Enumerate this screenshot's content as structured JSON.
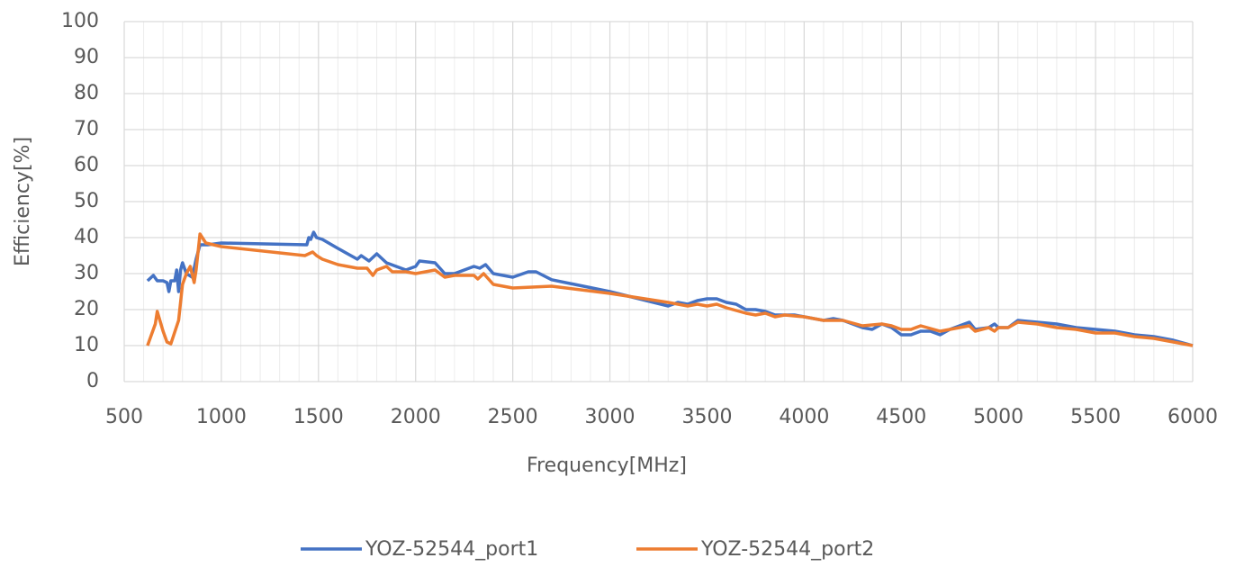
{
  "chart_data": {
    "type": "line",
    "x_label": "Frequency[MHz]",
    "y_label": "Efficiency[%]",
    "xlim": [
      500,
      6000
    ],
    "xticks": [
      500,
      1000,
      1500,
      2000,
      2500,
      3000,
      3500,
      4000,
      4500,
      5000,
      5500,
      6000
    ],
    "ylim": [
      0,
      100
    ],
    "yticks": [
      0,
      10,
      20,
      30,
      40,
      50,
      60,
      70,
      80,
      90,
      100
    ],
    "grid": true,
    "minor_x_grid_step": 100,
    "legend": "bottom",
    "series": [
      {
        "name": "YOZ-52544_port1",
        "color": "#4472c4",
        "x": [
          620,
          650,
          670,
          700,
          720,
          730,
          740,
          760,
          770,
          780,
          790,
          800,
          820,
          850,
          870,
          890,
          910,
          930,
          1000,
          1440,
          1450,
          1460,
          1475,
          1490,
          1520,
          1600,
          1700,
          1720,
          1760,
          1800,
          1850,
          1900,
          1950,
          2000,
          2020,
          2100,
          2150,
          2200,
          2300,
          2330,
          2360,
          2400,
          2500,
          2580,
          2620,
          2700,
          3000,
          3300,
          3350,
          3400,
          3450,
          3500,
          3550,
          3600,
          3650,
          3700,
          3750,
          3800,
          3850,
          3900,
          3950,
          4000,
          4100,
          4150,
          4200,
          4300,
          4350,
          4400,
          4450,
          4500,
          4550,
          4600,
          4650,
          4700,
          4750,
          4800,
          4850,
          4880,
          4950,
          4980,
          5000,
          5050,
          5100,
          5200,
          5300,
          5400,
          5500,
          5600,
          5700,
          5800,
          5900,
          6000
        ],
        "values": [
          28,
          29.5,
          28,
          28,
          27.5,
          25,
          28,
          28,
          31,
          25,
          31,
          33,
          30,
          29,
          34,
          38,
          38,
          38,
          38.5,
          38,
          40,
          39.5,
          41.5,
          40,
          39.5,
          37,
          34,
          35,
          33.5,
          35.5,
          33,
          32,
          31,
          32,
          33.5,
          33,
          30,
          30,
          32,
          31.5,
          32.5,
          30,
          29,
          30.5,
          30.5,
          28.3,
          25,
          21,
          22,
          21.5,
          22.5,
          23,
          23,
          22,
          21.5,
          20,
          20,
          19.5,
          18.5,
          18.5,
          18.5,
          18,
          17,
          17.5,
          17,
          15,
          14.5,
          16,
          15,
          13,
          13,
          14,
          14,
          13,
          14.5,
          15.5,
          16.5,
          14.5,
          15,
          16,
          15,
          15,
          17,
          16.5,
          16,
          15,
          14.5,
          14,
          13,
          12.5,
          11.5,
          10
        ]
      },
      {
        "name": "YOZ-52544_port2",
        "color": "#ed7d31",
        "x": [
          620,
          660,
          670,
          700,
          720,
          740,
          780,
          800,
          820,
          840,
          860,
          870,
          890,
          920,
          1000,
          1430,
          1470,
          1490,
          1520,
          1600,
          1700,
          1750,
          1780,
          1800,
          1850,
          1880,
          1950,
          2000,
          2100,
          2150,
          2200,
          2300,
          2320,
          2350,
          2400,
          2500,
          2700,
          3000,
          3300,
          3400,
          3450,
          3500,
          3550,
          3600,
          3700,
          3750,
          3800,
          3850,
          3900,
          4000,
          4100,
          4200,
          4300,
          4400,
          4450,
          4500,
          4550,
          4600,
          4700,
          4800,
          4850,
          4880,
          4950,
          4980,
          5000,
          5050,
          5100,
          5200,
          5300,
          5400,
          5500,
          5600,
          5700,
          5800,
          5900,
          6000
        ],
        "values": [
          10,
          16,
          19.5,
          14,
          11,
          10.5,
          17,
          27,
          30,
          32,
          27.5,
          31,
          41,
          38.5,
          37.5,
          35,
          36,
          35,
          34,
          32.5,
          31.5,
          31.5,
          29.5,
          31,
          32,
          30.5,
          30.5,
          30,
          31,
          29,
          29.5,
          29.5,
          28.5,
          30,
          27,
          26,
          26.5,
          24.5,
          22,
          21,
          21.5,
          21,
          21.5,
          20.5,
          19,
          18.5,
          19,
          18,
          18.5,
          18,
          17,
          17,
          15.5,
          16,
          15.5,
          14.5,
          14.5,
          15.5,
          14,
          15,
          15.5,
          14,
          15,
          14,
          15,
          15,
          16.5,
          16,
          15,
          14.5,
          13.5,
          13.5,
          12.5,
          12,
          11,
          10
        ]
      }
    ]
  }
}
